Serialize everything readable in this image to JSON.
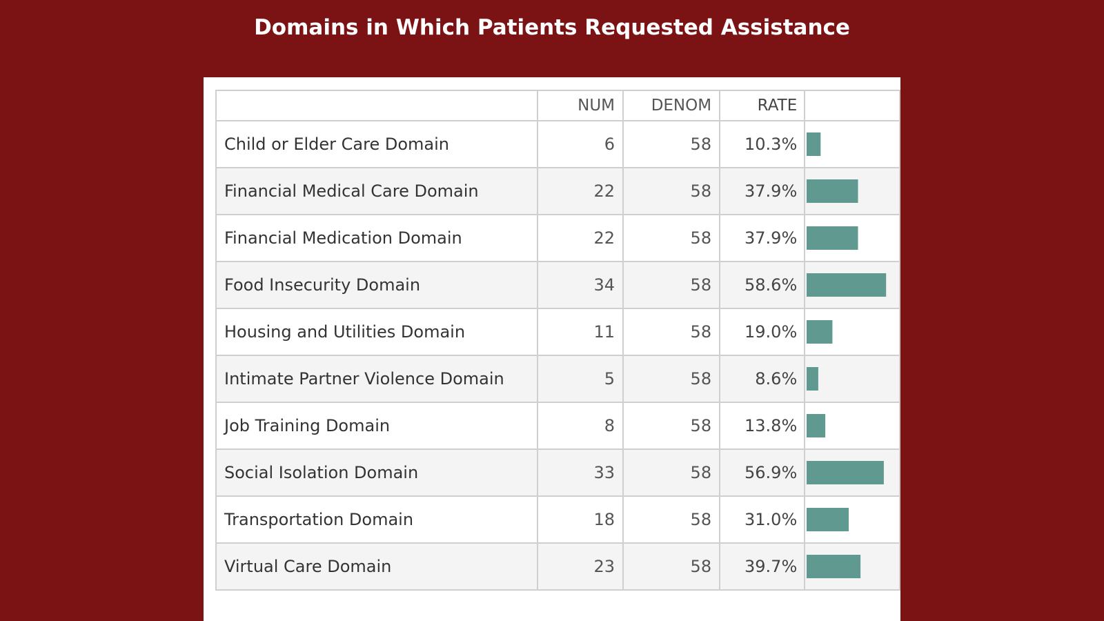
{
  "title": "Domains in Which Patients Requested Assistance",
  "colors": {
    "background": "#7b1315",
    "bar": "#5f9990",
    "panel": "#ffffff"
  },
  "table": {
    "headers": {
      "label": "",
      "num": "NUM",
      "denom": "DENOM",
      "rate": "RATE",
      "bar": ""
    }
  },
  "chart_data": {
    "type": "table",
    "title": "Domains in Which Patients Requested Assistance",
    "columns": [
      "NUM",
      "DENOM",
      "RATE"
    ],
    "xlim": [
      0,
      60
    ],
    "rows": [
      {
        "label": "Child or Elder Care Domain",
        "num": "6",
        "denom": "58",
        "rate": "10.3%",
        "value": 10.3
      },
      {
        "label": "Financial Medical Care Domain",
        "num": "22",
        "denom": "58",
        "rate": "37.9%",
        "value": 37.9
      },
      {
        "label": "Financial Medication Domain",
        "num": "22",
        "denom": "58",
        "rate": "37.9%",
        "value": 37.9
      },
      {
        "label": "Food Insecurity Domain",
        "num": "34",
        "denom": "58",
        "rate": "58.6%",
        "value": 58.6
      },
      {
        "label": "Housing and Utilities Domain",
        "num": "11",
        "denom": "58",
        "rate": "19.0%",
        "value": 19.0
      },
      {
        "label": "Intimate Partner Violence Domain",
        "num": "5",
        "denom": "58",
        "rate": "8.6%",
        "value": 8.6
      },
      {
        "label": "Job Training Domain",
        "num": "8",
        "denom": "58",
        "rate": "13.8%",
        "value": 13.8
      },
      {
        "label": "Social Isolation Domain",
        "num": "33",
        "denom": "58",
        "rate": "56.9%",
        "value": 56.9
      },
      {
        "label": "Transportation Domain",
        "num": "18",
        "denom": "58",
        "rate": "31.0%",
        "value": 31.0
      },
      {
        "label": "Virtual Care Domain",
        "num": "23",
        "denom": "58",
        "rate": "39.7%",
        "value": 39.7
      }
    ]
  }
}
